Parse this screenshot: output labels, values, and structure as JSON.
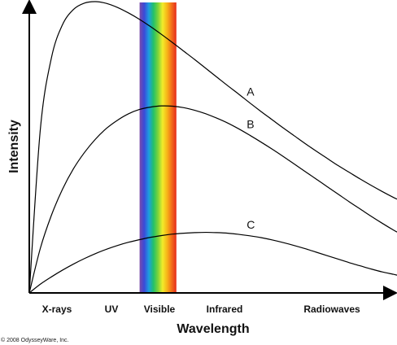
{
  "copyright": "© 2008 OdysseyWare, Inc.",
  "chart_data": {
    "type": "line",
    "title": "",
    "xlabel": "Wavelength",
    "ylabel": "Intensity",
    "x_categories": [
      "X-rays",
      "UV",
      "Visible",
      "Infrared",
      "Radiowaves"
    ],
    "xlim": [
      0,
      100
    ],
    "ylim": [
      0,
      100
    ],
    "grid": false,
    "legend": "none",
    "visible_band": {
      "label": "Visible",
      "range": [
        30,
        40
      ],
      "colors": [
        "#7a4aa8",
        "#3b49d8",
        "#1e9de0",
        "#22c06a",
        "#7cd43a",
        "#f2ec2a",
        "#f7b318",
        "#f26b1a",
        "#e52c1c"
      ]
    },
    "series": [
      {
        "name": "A",
        "x": [
          0,
          3,
          6,
          9,
          12,
          15,
          18,
          21,
          24,
          27,
          30,
          33,
          36,
          39,
          42,
          45,
          48,
          51,
          54,
          57,
          60,
          63,
          66,
          69,
          72,
          75,
          78,
          81,
          84,
          87,
          90,
          93,
          96,
          99,
          100
        ],
        "y": [
          0,
          56.1,
          80.6,
          92.0,
          97.3,
          99.5,
          100,
          99.4,
          98.0,
          96.1,
          93.9,
          91.4,
          88.7,
          85.9,
          83.0,
          80.1,
          77.1,
          74.1,
          71.1,
          68.2,
          65.2,
          62.3,
          59.5,
          56.7,
          54.0,
          51.3,
          48.7,
          46.2,
          43.7,
          41.4,
          39.1,
          36.9,
          34.8,
          32.8,
          32.2
        ]
      },
      {
        "name": "B",
        "x": [
          0,
          3,
          6,
          9,
          12,
          15,
          18,
          21,
          24,
          27,
          30,
          33,
          36,
          39,
          42,
          45,
          48,
          51,
          54,
          57,
          60,
          63,
          66,
          69,
          72,
          75,
          78,
          81,
          84,
          87,
          90,
          93,
          96,
          99,
          100
        ],
        "y": [
          0,
          15.3,
          26.6,
          35.5,
          42.6,
          48.2,
          52.8,
          56.5,
          59.3,
          61.5,
          63.0,
          63.8,
          64.2,
          64.1,
          63.6,
          62.7,
          61.5,
          60.0,
          58.3,
          56.3,
          54.1,
          51.8,
          49.4,
          46.9,
          44.3,
          41.7,
          39.1,
          36.5,
          33.9,
          31.3,
          28.8,
          26.3,
          23.9,
          21.6,
          20.9
        ]
      },
      {
        "name": "C",
        "x": [
          0,
          3,
          6,
          9,
          12,
          15,
          18,
          21,
          24,
          27,
          30,
          33,
          36,
          39,
          42,
          45,
          48,
          51,
          54,
          57,
          60,
          63,
          66,
          69,
          72,
          75,
          78,
          81,
          84,
          87,
          90,
          93,
          96,
          99,
          100
        ],
        "y": [
          0,
          3.0,
          5.5,
          7.8,
          9.9,
          11.8,
          13.5,
          15.0,
          16.3,
          17.4,
          18.3,
          19.1,
          19.7,
          20.2,
          20.5,
          20.7,
          20.8,
          20.7,
          20.5,
          20.1,
          19.6,
          19.0,
          18.2,
          17.3,
          16.3,
          15.2,
          14.0,
          12.8,
          11.6,
          10.4,
          9.3,
          8.2,
          7.2,
          6.4,
          6.1
        ]
      }
    ]
  }
}
